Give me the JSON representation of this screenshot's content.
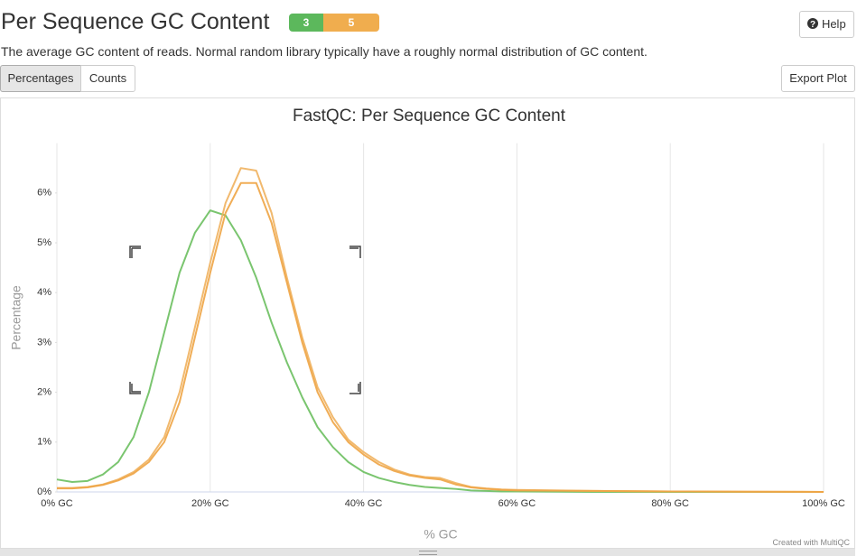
{
  "header": {
    "title": "Per Sequence GC Content",
    "badges": [
      "3",
      "5"
    ],
    "help": "Help"
  },
  "description": "The average GC content of reads. Normal random library typically have a roughly normal distribution of GC content.",
  "buttons": {
    "percentages": "Percentages",
    "counts": "Counts",
    "export": "Export Plot"
  },
  "chart_data": {
    "type": "line",
    "title": "FastQC: Per Sequence GC Content",
    "x_label": "% GC",
    "y_label": "Percentage",
    "credit": "Created with MultiQC",
    "x": [
      0,
      2,
      4,
      6,
      8,
      10,
      12,
      14,
      16,
      18,
      20,
      22,
      24,
      26,
      28,
      30,
      32,
      34,
      36,
      38,
      40,
      42,
      44,
      46,
      48,
      50,
      52,
      54,
      56,
      58,
      60,
      70,
      80,
      90,
      100
    ],
    "series": [
      {
        "color": "#6cbf5f",
        "values": [
          0.25,
          0.2,
          0.22,
          0.35,
          0.6,
          1.1,
          2.0,
          3.2,
          4.4,
          5.2,
          5.65,
          5.55,
          5.05,
          4.3,
          3.4,
          2.6,
          1.9,
          1.3,
          0.9,
          0.6,
          0.4,
          0.28,
          0.2,
          0.14,
          0.1,
          0.08,
          0.06,
          0.03,
          0.02,
          0.01,
          0.01,
          0,
          0,
          0,
          0
        ]
      },
      {
        "color": "#f0b15e",
        "values": [
          0.08,
          0.08,
          0.1,
          0.15,
          0.25,
          0.4,
          0.65,
          1.1,
          2.0,
          3.3,
          4.6,
          5.8,
          6.5,
          6.45,
          5.6,
          4.3,
          3.1,
          2.1,
          1.5,
          1.05,
          0.8,
          0.6,
          0.45,
          0.35,
          0.3,
          0.28,
          0.18,
          0.1,
          0.07,
          0.05,
          0.04,
          0.02,
          0.01,
          0.005,
          0
        ]
      },
      {
        "color": "#eea444",
        "values": [
          0.07,
          0.07,
          0.09,
          0.14,
          0.23,
          0.37,
          0.6,
          1.0,
          1.8,
          3.1,
          4.4,
          5.6,
          6.2,
          6.2,
          5.4,
          4.2,
          3.0,
          2.0,
          1.4,
          1.0,
          0.75,
          0.55,
          0.42,
          0.33,
          0.28,
          0.25,
          0.15,
          0.09,
          0.06,
          0.04,
          0.03,
          0.02,
          0.01,
          0.005,
          0
        ]
      }
    ],
    "xlim": [
      0,
      100
    ],
    "xticks": [
      {
        "value": 0,
        "label": "0% GC"
      },
      {
        "value": 20,
        "label": "20% GC"
      },
      {
        "value": 40,
        "label": "40% GC"
      },
      {
        "value": 60,
        "label": "60% GC"
      },
      {
        "value": 80,
        "label": "80% GC"
      },
      {
        "value": 100,
        "label": "100% GC"
      }
    ],
    "ylim": [
      0,
      7
    ],
    "yticks": [
      {
        "value": 0,
        "label": "0%"
      },
      {
        "value": 1,
        "label": "1%"
      },
      {
        "value": 2,
        "label": "2%"
      },
      {
        "value": 3,
        "label": "3%"
      },
      {
        "value": 4,
        "label": "4%"
      },
      {
        "value": 5,
        "label": "5%"
      },
      {
        "value": 6,
        "label": "6%"
      }
    ],
    "xgrid": true
  }
}
